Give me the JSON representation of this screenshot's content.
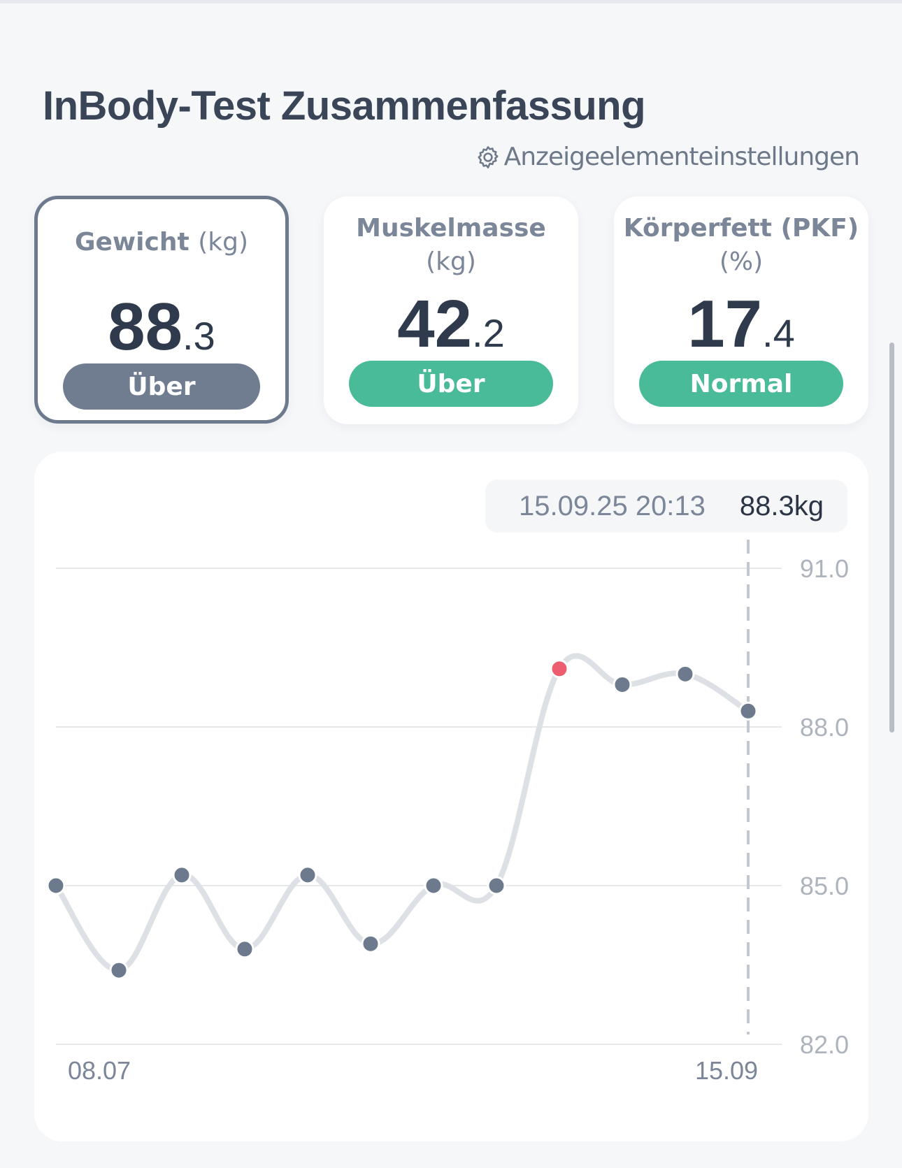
{
  "header": {
    "title": "InBody-Test Zusammenfassung",
    "settings_label": "Anzeigeelementeinstellungen",
    "settings_icon": "gear-icon"
  },
  "cards": [
    {
      "label": "Gewicht",
      "unit": "(kg)",
      "int": "88",
      "dec": ".3",
      "badge": "Über",
      "badge_color": "#707d91",
      "selected": true
    },
    {
      "label": "Muskelmasse",
      "unit": "(kg)",
      "int": "42",
      "dec": ".2",
      "badge": "Über",
      "badge_color": "#49bb98",
      "selected": false
    },
    {
      "label": "Körperfett (PKF)",
      "unit": "(%)",
      "int": "17",
      "dec": ".4",
      "badge": "Normal",
      "badge_color": "#49bb98",
      "selected": false
    }
  ],
  "tooltip": {
    "date": "15.09.25 20:13",
    "value": "88.3kg"
  },
  "chart_data": {
    "type": "line",
    "yticks": [
      91.0,
      88.0,
      85.0,
      82.0
    ],
    "ytick_labels": [
      "91.0",
      "88.0",
      "85.0",
      "82.0"
    ],
    "ylim": [
      82.0,
      91.0
    ],
    "xtick_labels": [
      "08.07",
      "15.09"
    ],
    "grid": true,
    "highlight_index": 8,
    "selected_index": 11,
    "values": [
      85.0,
      83.4,
      85.2,
      83.8,
      85.2,
      83.9,
      85.0,
      85.0,
      89.1,
      88.8,
      89.0,
      88.3
    ],
    "line_color": "#dde0e5",
    "point_color": "#6d7a8e",
    "highlight_color": "#ec5d70"
  }
}
